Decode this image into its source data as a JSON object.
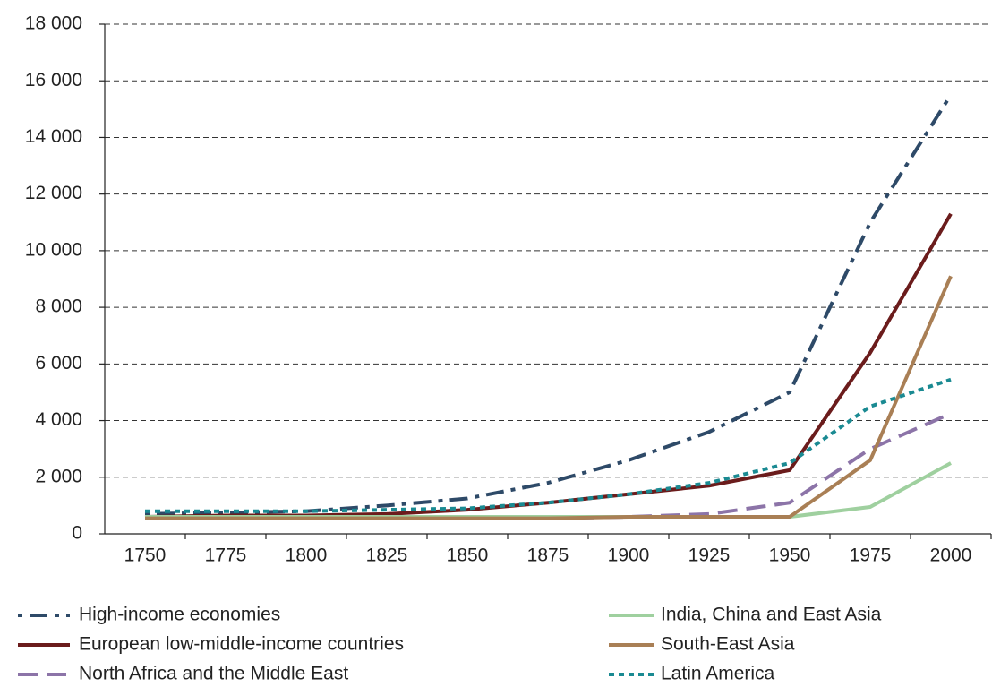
{
  "chart_data": {
    "type": "line",
    "categories": [
      "1750",
      "1775",
      "1800",
      "1825",
      "1850",
      "1875",
      "1900",
      "1925",
      "1950",
      "1975",
      "2000"
    ],
    "ylim": [
      0,
      18000
    ],
    "yticks": [
      0,
      {
        "value": 2000,
        "label": "2 000"
      },
      {
        "value": 4000,
        "label": "4 000"
      },
      {
        "value": 6000,
        "label": "6 000"
      },
      {
        "value": 8000,
        "label": "8 000"
      },
      {
        "value": 10000,
        "label": "10 000"
      },
      {
        "value": 12000,
        "label": "12 000"
      },
      {
        "value": 14000,
        "label": "14 000"
      },
      {
        "value": 16000,
        "label": "16 000"
      },
      {
        "value": 18000,
        "label": "18 000"
      }
    ],
    "grid": true,
    "legend": "bottom",
    "series": [
      {
        "name": "High-income economies",
        "color": "#2e4a68",
        "style": "dashdot",
        "values": [
          700,
          750,
          800,
          1000,
          1250,
          1800,
          2600,
          3600,
          5000,
          11000,
          15500
        ]
      },
      {
        "name": "European low-middle-income countries",
        "color": "#6b1c1c",
        "style": "solid",
        "values": [
          600,
          650,
          650,
          700,
          850,
          1100,
          1400,
          1700,
          2250,
          6400,
          11300
        ]
      },
      {
        "name": "North Africa and the Middle East",
        "color": "#8c74a8",
        "style": "dashed",
        "values": [
          550,
          550,
          550,
          550,
          550,
          550,
          600,
          700,
          1100,
          3000,
          4250
        ]
      },
      {
        "name": "India, China and East Asia",
        "color": "#9fd09f",
        "style": "solid",
        "values": [
          600,
          600,
          600,
          600,
          600,
          600,
          600,
          600,
          600,
          950,
          2500
        ]
      },
      {
        "name": "South-East Asia",
        "color": "#a97f55",
        "style": "solid",
        "values": [
          550,
          550,
          550,
          550,
          550,
          550,
          600,
          600,
          600,
          2600,
          9100
        ]
      },
      {
        "name": "Latin America",
        "color": "#1a8a92",
        "style": "dotted",
        "values": [
          800,
          800,
          800,
          850,
          900,
          1100,
          1400,
          1800,
          2500,
          4500,
          5450
        ]
      }
    ]
  }
}
